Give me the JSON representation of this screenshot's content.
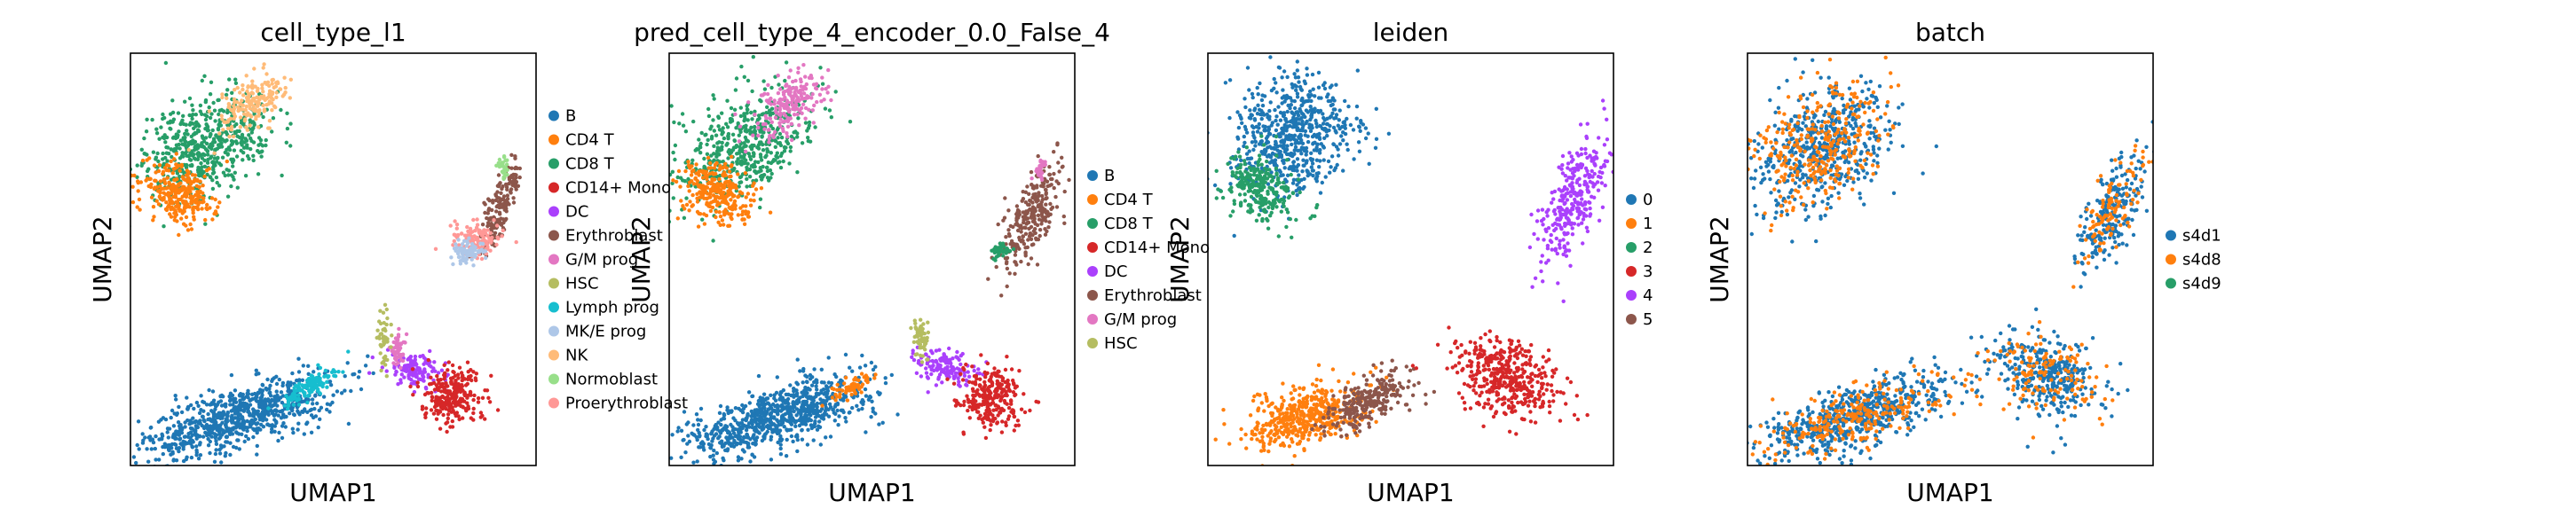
{
  "figure": {
    "panels": [
      {
        "title": "cell_type_l1",
        "xlabel": "UMAP1",
        "ylabel": "UMAP2",
        "legend": [
          {
            "label": "B",
            "color": "#1f77b4"
          },
          {
            "label": "CD4 T",
            "color": "#ff7f0e"
          },
          {
            "label": "CD8 T",
            "color": "#279e68"
          },
          {
            "label": "CD14+ Mono",
            "color": "#d62728"
          },
          {
            "label": "DC",
            "color": "#aa40fc"
          },
          {
            "label": "Erythroblast",
            "color": "#8c564b"
          },
          {
            "label": "G/M prog",
            "color": "#e377c2"
          },
          {
            "label": "HSC",
            "color": "#b5bd61"
          },
          {
            "label": "Lymph prog",
            "color": "#17becf"
          },
          {
            "label": "MK/E prog",
            "color": "#aec7e8"
          },
          {
            "label": "NK",
            "color": "#ffbb78"
          },
          {
            "label": "Normoblast",
            "color": "#98df8a"
          },
          {
            "label": "Proerythroblast",
            "color": "#ff9896"
          }
        ]
      },
      {
        "title": "pred_cell_type_4_encoder_0.0_False_4",
        "xlabel": "UMAP1",
        "ylabel": "UMAP2",
        "legend": [
          {
            "label": "B",
            "color": "#1f77b4"
          },
          {
            "label": "CD4 T",
            "color": "#ff7f0e"
          },
          {
            "label": "CD8 T",
            "color": "#279e68"
          },
          {
            "label": "CD14+ Mono",
            "color": "#d62728"
          },
          {
            "label": "DC",
            "color": "#aa40fc"
          },
          {
            "label": "Erythroblast",
            "color": "#8c564b"
          },
          {
            "label": "G/M prog",
            "color": "#e377c2"
          },
          {
            "label": "HSC",
            "color": "#b5bd61"
          }
        ]
      },
      {
        "title": "leiden",
        "xlabel": "UMAP1",
        "ylabel": "UMAP2",
        "legend": [
          {
            "label": "0",
            "color": "#1f77b4"
          },
          {
            "label": "1",
            "color": "#ff7f0e"
          },
          {
            "label": "2",
            "color": "#279e68"
          },
          {
            "label": "3",
            "color": "#d62728"
          },
          {
            "label": "4",
            "color": "#aa40fc"
          },
          {
            "label": "5",
            "color": "#8c564b"
          }
        ]
      },
      {
        "title": "batch",
        "xlabel": "UMAP1",
        "ylabel": "UMAP2",
        "legend": [
          {
            "label": "s4d1",
            "color": "#1f77b4"
          },
          {
            "label": "s4d8",
            "color": "#ff7f0e"
          },
          {
            "label": "s4d9",
            "color": "#279e68"
          }
        ]
      }
    ]
  },
  "chart_data": [
    {
      "type": "scatter",
      "title": "cell_type_l1",
      "xlabel": "UMAP1",
      "ylabel": "UMAP2",
      "grid": false,
      "legend_position": "right",
      "clusters": [
        {
          "name": "CD8 T",
          "x": 0.18,
          "y": 0.77,
          "n": 560,
          "sx": 0.055,
          "sy": 0.09,
          "rot": -55
        },
        {
          "name": "NK",
          "x": 0.3,
          "y": 0.88,
          "n": 170,
          "sx": 0.025,
          "sy": 0.05,
          "rot": -50
        },
        {
          "name": "CD4 T",
          "x": 0.12,
          "y": 0.66,
          "n": 280,
          "sx": 0.045,
          "sy": 0.035,
          "rot": -25
        },
        {
          "name": "Erythroblast",
          "x": 0.915,
          "y": 0.63,
          "n": 170,
          "sx": 0.016,
          "sy": 0.06,
          "rot": -20
        },
        {
          "name": "Proerythroblast",
          "x": 0.855,
          "y": 0.55,
          "n": 110,
          "sx": 0.03,
          "sy": 0.02,
          "rot": -10
        },
        {
          "name": "MK/E prog",
          "x": 0.83,
          "y": 0.52,
          "n": 80,
          "sx": 0.02,
          "sy": 0.013,
          "rot": 0
        },
        {
          "name": "Normoblast",
          "x": 0.92,
          "y": 0.72,
          "n": 30,
          "sx": 0.008,
          "sy": 0.012,
          "rot": 0
        },
        {
          "name": "B",
          "x": 0.27,
          "y": 0.12,
          "n": 820,
          "sx": 0.12,
          "sy": 0.035,
          "rot": 18
        },
        {
          "name": "Lymph prog",
          "x": 0.44,
          "y": 0.19,
          "n": 120,
          "sx": 0.035,
          "sy": 0.012,
          "rot": 30
        },
        {
          "name": "DC",
          "x": 0.7,
          "y": 0.23,
          "n": 140,
          "sx": 0.035,
          "sy": 0.02,
          "rot": -15
        },
        {
          "name": "CD14+ Mono",
          "x": 0.79,
          "y": 0.17,
          "n": 260,
          "sx": 0.04,
          "sy": 0.035,
          "rot": -20
        },
        {
          "name": "G/M prog",
          "x": 0.66,
          "y": 0.28,
          "n": 50,
          "sx": 0.01,
          "sy": 0.02,
          "rot": 0
        },
        {
          "name": "HSC",
          "x": 0.625,
          "y": 0.31,
          "n": 50,
          "sx": 0.008,
          "sy": 0.03,
          "rot": 0
        }
      ]
    },
    {
      "type": "scatter",
      "title": "pred_cell_type_4_encoder_0.0_False_4",
      "xlabel": "UMAP1",
      "ylabel": "UMAP2",
      "grid": false,
      "legend_position": "right",
      "clusters": [
        {
          "name": "CD8 T",
          "x": 0.18,
          "y": 0.77,
          "n": 520,
          "sx": 0.055,
          "sy": 0.09,
          "rot": -55
        },
        {
          "name": "G/M prog",
          "x": 0.3,
          "y": 0.88,
          "n": 200,
          "sx": 0.028,
          "sy": 0.05,
          "rot": -50
        },
        {
          "name": "CD4 T",
          "x": 0.12,
          "y": 0.66,
          "n": 280,
          "sx": 0.045,
          "sy": 0.035,
          "rot": -25
        },
        {
          "name": "Erythroblast",
          "x": 0.89,
          "y": 0.6,
          "n": 260,
          "sx": 0.025,
          "sy": 0.07,
          "rot": -25
        },
        {
          "name": "CD8 T",
          "x": 0.82,
          "y": 0.52,
          "n": 40,
          "sx": 0.012,
          "sy": 0.01,
          "rot": 0
        },
        {
          "name": "G/M prog",
          "x": 0.915,
          "y": 0.72,
          "n": 30,
          "sx": 0.008,
          "sy": 0.012,
          "rot": 0
        },
        {
          "name": "B",
          "x": 0.27,
          "y": 0.12,
          "n": 820,
          "sx": 0.12,
          "sy": 0.035,
          "rot": 18
        },
        {
          "name": "CD4 T",
          "x": 0.45,
          "y": 0.19,
          "n": 60,
          "sx": 0.03,
          "sy": 0.012,
          "rot": 30
        },
        {
          "name": "DC",
          "x": 0.68,
          "y": 0.24,
          "n": 140,
          "sx": 0.035,
          "sy": 0.02,
          "rot": -15
        },
        {
          "name": "CD14+ Mono",
          "x": 0.79,
          "y": 0.17,
          "n": 260,
          "sx": 0.04,
          "sy": 0.035,
          "rot": -20
        },
        {
          "name": "HSC",
          "x": 0.62,
          "y": 0.31,
          "n": 60,
          "sx": 0.01,
          "sy": 0.03,
          "rot": 0
        }
      ]
    },
    {
      "type": "scatter",
      "title": "leiden",
      "xlabel": "UMAP1",
      "ylabel": "UMAP2",
      "grid": false,
      "legend_position": "right",
      "clusters": [
        {
          "name": "0",
          "x": 0.21,
          "y": 0.8,
          "n": 620,
          "sx": 0.07,
          "sy": 0.08,
          "rot": -45
        },
        {
          "name": "2",
          "x": 0.13,
          "y": 0.67,
          "n": 260,
          "sx": 0.045,
          "sy": 0.035,
          "rot": -25
        },
        {
          "name": "4",
          "x": 0.9,
          "y": 0.64,
          "n": 300,
          "sx": 0.03,
          "sy": 0.08,
          "rot": -25
        },
        {
          "name": "1",
          "x": 0.24,
          "y": 0.12,
          "n": 480,
          "sx": 0.07,
          "sy": 0.035,
          "rot": 15
        },
        {
          "name": "5",
          "x": 0.4,
          "y": 0.16,
          "n": 260,
          "sx": 0.06,
          "sy": 0.025,
          "rot": 30
        },
        {
          "name": "3",
          "x": 0.74,
          "y": 0.21,
          "n": 420,
          "sx": 0.07,
          "sy": 0.045,
          "rot": -25
        }
      ]
    },
    {
      "type": "scatter",
      "title": "batch",
      "xlabel": "UMAP1",
      "ylabel": "UMAP2",
      "grid": false,
      "legend_position": "right",
      "clusters": [
        {
          "name": "s4d1",
          "x": 0.18,
          "y": 0.77,
          "n": 520,
          "sx": 0.065,
          "sy": 0.09,
          "rot": -50
        },
        {
          "name": "s4d8",
          "x": 0.18,
          "y": 0.77,
          "n": 320,
          "sx": 0.065,
          "sy": 0.09,
          "rot": -50
        },
        {
          "name": "s4d1",
          "x": 0.9,
          "y": 0.62,
          "n": 220,
          "sx": 0.028,
          "sy": 0.075,
          "rot": -25
        },
        {
          "name": "s4d8",
          "x": 0.9,
          "y": 0.62,
          "n": 110,
          "sx": 0.028,
          "sy": 0.075,
          "rot": -25
        },
        {
          "name": "s4d1",
          "x": 0.27,
          "y": 0.12,
          "n": 620,
          "sx": 0.12,
          "sy": 0.035,
          "rot": 18
        },
        {
          "name": "s4d8",
          "x": 0.27,
          "y": 0.12,
          "n": 260,
          "sx": 0.12,
          "sy": 0.035,
          "rot": 18
        },
        {
          "name": "s4d1",
          "x": 0.74,
          "y": 0.22,
          "n": 320,
          "sx": 0.07,
          "sy": 0.045,
          "rot": -25
        },
        {
          "name": "s4d8",
          "x": 0.74,
          "y": 0.22,
          "n": 140,
          "sx": 0.07,
          "sy": 0.045,
          "rot": -25
        }
      ]
    }
  ]
}
